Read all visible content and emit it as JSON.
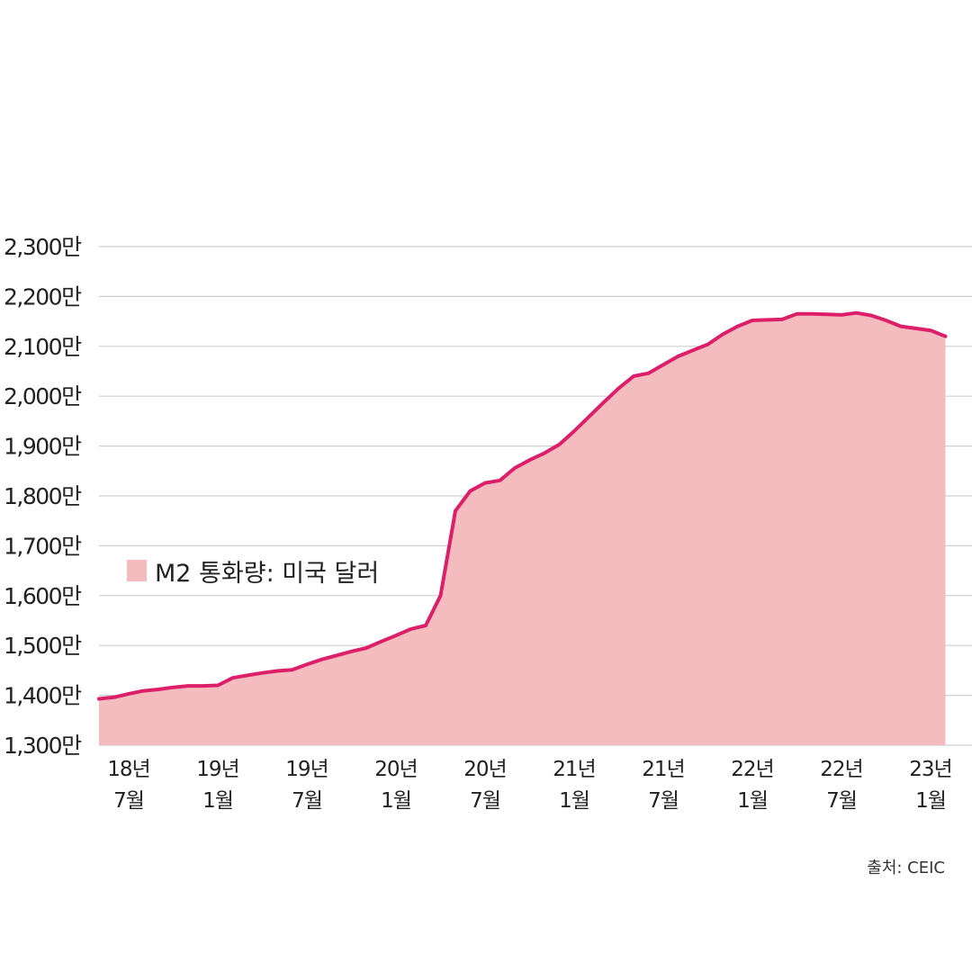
{
  "chart_data": {
    "type": "area",
    "title": "",
    "xlabel": "",
    "ylabel": "",
    "ylim": [
      13000000,
      23000000
    ],
    "xlim": [
      "2018-05",
      "2023-03"
    ],
    "grid": true,
    "legend_placement": "middle-left",
    "y_ticks": [
      {
        "value": 13000000,
        "label": "1,300만"
      },
      {
        "value": 14000000,
        "label": "1,400만"
      },
      {
        "value": 15000000,
        "label": "1,500만"
      },
      {
        "value": 16000000,
        "label": "1,600만"
      },
      {
        "value": 17000000,
        "label": "1,700만"
      },
      {
        "value": 18000000,
        "label": "1,800만"
      },
      {
        "value": 19000000,
        "label": "1,900만"
      },
      {
        "value": 20000000,
        "label": "2,000만"
      },
      {
        "value": 21000000,
        "label": "2,100만"
      },
      {
        "value": 22000000,
        "label": "2,200만"
      },
      {
        "value": 23000000,
        "label": "2,300만"
      }
    ],
    "x_ticks": [
      {
        "date": "2018-07",
        "line1": "18년",
        "line2": "7월"
      },
      {
        "date": "2019-01",
        "line1": "19년",
        "line2": "1월"
      },
      {
        "date": "2019-07",
        "line1": "19년",
        "line2": "7월"
      },
      {
        "date": "2020-01",
        "line1": "20년",
        "line2": "1월"
      },
      {
        "date": "2020-07",
        "line1": "20년",
        "line2": "7월"
      },
      {
        "date": "2021-01",
        "line1": "21년",
        "line2": "1월"
      },
      {
        "date": "2021-07",
        "line1": "21년",
        "line2": "7월"
      },
      {
        "date": "2022-01",
        "line1": "22년",
        "line2": "1월"
      },
      {
        "date": "2022-07",
        "line1": "22년",
        "line2": "7월"
      },
      {
        "date": "2023-01",
        "line1": "23년",
        "line2": "1월"
      }
    ],
    "series": [
      {
        "name": "M2 통화량: 미국 달러",
        "line_color": "#dd1f6a",
        "fill_color": "#f5bcc0",
        "x": [
          "2018-05",
          "2018-06",
          "2018-07",
          "2018-08",
          "2018-09",
          "2018-10",
          "2018-11",
          "2018-12",
          "2019-01",
          "2019-02",
          "2019-03",
          "2019-04",
          "2019-05",
          "2019-06",
          "2019-07",
          "2019-08",
          "2019-09",
          "2019-10",
          "2019-11",
          "2019-12",
          "2020-01",
          "2020-02",
          "2020-03",
          "2020-04",
          "2020-05",
          "2020-06",
          "2020-07",
          "2020-08",
          "2020-09",
          "2020-10",
          "2020-11",
          "2020-12",
          "2021-01",
          "2021-02",
          "2021-03",
          "2021-04",
          "2021-05",
          "2021-06",
          "2021-07",
          "2021-08",
          "2021-09",
          "2021-10",
          "2021-11",
          "2021-12",
          "2022-01",
          "2022-02",
          "2022-03",
          "2022-04",
          "2022-05",
          "2022-06",
          "2022-07",
          "2022-08",
          "2022-09",
          "2022-10",
          "2022-11",
          "2022-12",
          "2023-01",
          "2023-02"
        ],
        "values": [
          13930000,
          13960000,
          14030000,
          14090000,
          14120000,
          14160000,
          14190000,
          14190000,
          14200000,
          14350000,
          14400000,
          14450000,
          14490000,
          14510000,
          14620000,
          14720000,
          14800000,
          14880000,
          14950000,
          15080000,
          15200000,
          15330000,
          15400000,
          16000000,
          17700000,
          18100000,
          18260000,
          18310000,
          18560000,
          18720000,
          18860000,
          19030000,
          19300000,
          19590000,
          19880000,
          20160000,
          20400000,
          20460000,
          20630000,
          20800000,
          20920000,
          21040000,
          21240000,
          21400000,
          21520000,
          21530000,
          21540000,
          21650000,
          21650000,
          21640000,
          21630000,
          21670000,
          21620000,
          21520000,
          21400000,
          21360000,
          21320000,
          21200000
        ]
      }
    ],
    "source": "출처: CEIC"
  }
}
